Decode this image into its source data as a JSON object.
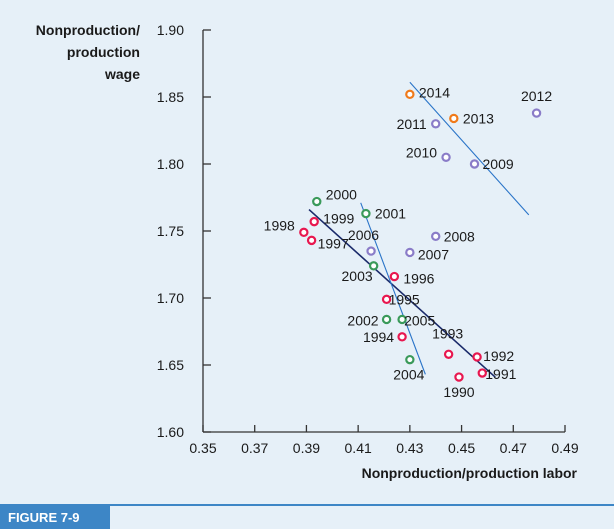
{
  "figure_label": "FIGURE 7-9",
  "chart_data": {
    "type": "scatter",
    "ylabel_lines": [
      "Nonproduction/",
      "production",
      "wage"
    ],
    "xlabel": "Nonproduction/production labor",
    "xlim": [
      0.35,
      0.49
    ],
    "ylim": [
      1.6,
      1.9
    ],
    "xticks": [
      "0.35",
      "0.37",
      "0.39",
      "0.41",
      "0.43",
      "0.45",
      "0.47",
      "0.49"
    ],
    "yticks": [
      "1.60",
      "1.65",
      "1.70",
      "1.75",
      "1.80",
      "1.85",
      "1.90"
    ],
    "colors": {
      "red": "#e8174f",
      "green": "#3a9a5a",
      "purple": "#8a7cc8",
      "orange": "#f07a1a",
      "navy": "#1a2a6a",
      "blue_line": "#2a74c8"
    },
    "points": [
      {
        "year": "1990",
        "x": 0.449,
        "y": 1.641,
        "group": "red"
      },
      {
        "year": "1991",
        "x": 0.458,
        "y": 1.644,
        "group": "red"
      },
      {
        "year": "1992",
        "x": 0.456,
        "y": 1.656,
        "group": "red"
      },
      {
        "year": "1993",
        "x": 0.445,
        "y": 1.658,
        "group": "red"
      },
      {
        "year": "1994",
        "x": 0.427,
        "y": 1.671,
        "group": "red"
      },
      {
        "year": "1995",
        "x": 0.421,
        "y": 1.699,
        "group": "red"
      },
      {
        "year": "1996",
        "x": 0.424,
        "y": 1.716,
        "group": "red"
      },
      {
        "year": "1997",
        "x": 0.392,
        "y": 1.743,
        "group": "red"
      },
      {
        "year": "1998",
        "x": 0.389,
        "y": 1.749,
        "group": "red"
      },
      {
        "year": "1999",
        "x": 0.393,
        "y": 1.757,
        "group": "red"
      },
      {
        "year": "2000",
        "x": 0.394,
        "y": 1.772,
        "group": "green"
      },
      {
        "year": "2001",
        "x": 0.413,
        "y": 1.763,
        "group": "green"
      },
      {
        "year": "2002",
        "x": 0.421,
        "y": 1.684,
        "group": "green"
      },
      {
        "year": "2003",
        "x": 0.416,
        "y": 1.724,
        "group": "green"
      },
      {
        "year": "2004",
        "x": 0.43,
        "y": 1.654,
        "group": "green"
      },
      {
        "year": "2005",
        "x": 0.427,
        "y": 1.684,
        "group": "green"
      },
      {
        "year": "2006",
        "x": 0.415,
        "y": 1.735,
        "group": "purple"
      },
      {
        "year": "2007",
        "x": 0.43,
        "y": 1.734,
        "group": "purple"
      },
      {
        "year": "2008",
        "x": 0.44,
        "y": 1.746,
        "group": "purple"
      },
      {
        "year": "2009",
        "x": 0.455,
        "y": 1.8,
        "group": "purple"
      },
      {
        "year": "2010",
        "x": 0.444,
        "y": 1.805,
        "group": "purple"
      },
      {
        "year": "2011",
        "x": 0.44,
        "y": 1.83,
        "group": "purple"
      },
      {
        "year": "2012",
        "x": 0.479,
        "y": 1.838,
        "group": "purple"
      },
      {
        "year": "2013",
        "x": 0.447,
        "y": 1.834,
        "group": "orange"
      },
      {
        "year": "2014",
        "x": 0.43,
        "y": 1.852,
        "group": "orange"
      }
    ],
    "lines": [
      {
        "name": "",
        "color": "navy",
        "x": [
          0.391,
          0.463
        ],
        "y": [
          1.766,
          1.641
        ]
      },
      {
        "name": "",
        "color": "blue_line",
        "x": [
          0.411,
          0.436
        ],
        "y": [
          1.771,
          1.643
        ]
      },
      {
        "name": "",
        "color": "blue_line",
        "x": [
          0.43,
          0.476
        ],
        "y": [
          1.861,
          1.762
        ]
      }
    ]
  }
}
